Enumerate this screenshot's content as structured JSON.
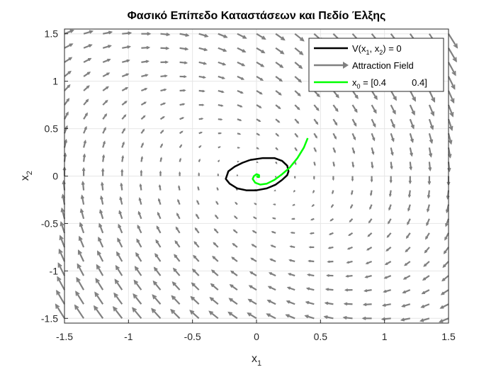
{
  "chart_data": {
    "type": "quiver+line",
    "title": "Φασικό Επίπεδο Καταστάσεων και Πεδίο Έλξης",
    "xlabel": "x1",
    "ylabel": "x2",
    "xlim": [
      -1.5,
      1.5
    ],
    "ylim": [
      -1.55,
      1.55
    ],
    "xticks": [
      "-1.5",
      "-1",
      "-0.5",
      "0",
      "0.5",
      "1",
      "1.5"
    ],
    "yticks": [
      "1.5",
      "1",
      "0.5",
      "0",
      "-0.5",
      "-1",
      "-1.5"
    ],
    "grid": true,
    "legend_position": "top-right",
    "series": [
      {
        "name": "V(x1, x2) = 0",
        "legend_main": "V(x",
        "legend_sub1": "1",
        "legend_mid": ", x",
        "legend_sub2": "2",
        "legend_end": ") = 0",
        "color": "#000000",
        "type": "line",
        "x": [
          -0.05,
          0.05,
          0.14,
          0.2,
          0.24,
          0.25,
          0.24,
          0.2,
          0.15,
          0.08,
          0.0,
          -0.08,
          -0.15,
          -0.21,
          -0.24,
          -0.22,
          -0.17,
          -0.11,
          -0.05
        ],
        "y": [
          0.17,
          0.19,
          0.19,
          0.16,
          0.11,
          0.05,
          0.01,
          -0.04,
          -0.09,
          -0.13,
          -0.15,
          -0.15,
          -0.13,
          -0.08,
          -0.03,
          0.05,
          0.1,
          0.14,
          0.17
        ]
      },
      {
        "name": "Attraction Field",
        "color": "#808080",
        "type": "quiver"
      },
      {
        "name": "x0 = [0.4 0.4]",
        "legend_main": "x",
        "legend_sub1": "0",
        "legend_end": " = [0.4          0.4]",
        "color": "#00ff00",
        "type": "line",
        "x": [
          0.4,
          0.37,
          0.32,
          0.26,
          0.2,
          0.14,
          0.08,
          0.03,
          -0.01,
          -0.03,
          -0.02,
          0.0,
          0.02,
          0.02,
          0.01,
          0.0
        ],
        "y": [
          0.4,
          0.3,
          0.19,
          0.09,
          0.02,
          -0.04,
          -0.08,
          -0.09,
          -0.07,
          -0.03,
          0.0,
          0.02,
          0.01,
          -0.01,
          -0.01,
          0.0
        ]
      }
    ]
  }
}
